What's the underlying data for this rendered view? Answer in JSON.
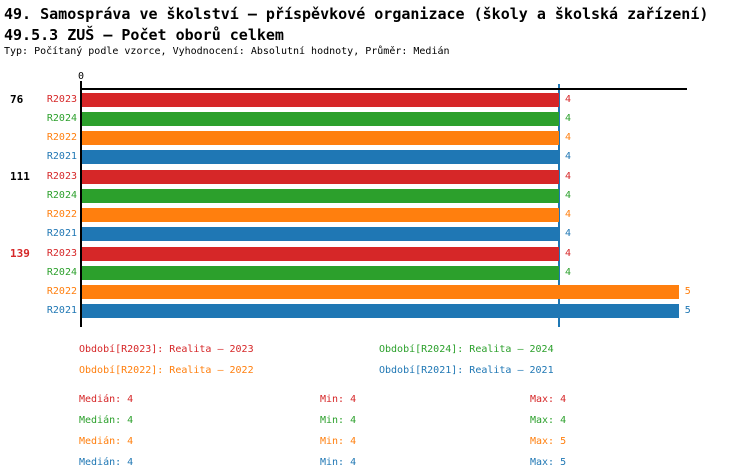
{
  "header": {
    "title": "49. Samospráva ve školství – příspěvkové organizace (školy a školská zařízení)",
    "subtitle": "49.5.3 ZUŠ – Počet oborů celkem",
    "meta": "Typ: Počítaný podle vzorce, Vyhodnocení: Absolutní hodnoty, Průměr: Medián"
  },
  "colors": {
    "R2023": "#d62728",
    "R2024": "#2ca02c",
    "R2022": "#ff7f0e",
    "R2021": "#1f77b4",
    "axis": "#000000",
    "median_line": "#1f77b4",
    "group_label_default": "#000000",
    "group_label_highlight": "#d62728"
  },
  "chart_data": {
    "type": "bar",
    "orientation": "horizontal",
    "title": "49.5.3 ZUŠ – Počet oborů celkem",
    "series_order": [
      "R2023",
      "R2024",
      "R2022",
      "R2021"
    ],
    "series_colors": {
      "R2023": "#d62728",
      "R2024": "#2ca02c",
      "R2022": "#ff7f0e",
      "R2021": "#1f77b4"
    },
    "x_axis": {
      "tick_values": [
        0
      ],
      "tick_labels": [
        "0"
      ],
      "range": [
        0,
        5.06
      ],
      "grid": false
    },
    "median_marker_value": 4,
    "groups": [
      {
        "label": "76",
        "label_color": "#000000",
        "bars": [
          {
            "series": "R2023",
            "value": 4
          },
          {
            "series": "R2024",
            "value": 4
          },
          {
            "series": "R2022",
            "value": 4
          },
          {
            "series": "R2021",
            "value": 4
          }
        ]
      },
      {
        "label": "111",
        "label_color": "#000000",
        "bars": [
          {
            "series": "R2023",
            "value": 4
          },
          {
            "series": "R2024",
            "value": 4
          },
          {
            "series": "R2022",
            "value": 4
          },
          {
            "series": "R2021",
            "value": 4
          }
        ]
      },
      {
        "label": "139",
        "label_color": "#d62728",
        "bars": [
          {
            "series": "R2023",
            "value": 4
          },
          {
            "series": "R2024",
            "value": 4
          },
          {
            "series": "R2022",
            "value": 5
          },
          {
            "series": "R2021",
            "value": 5
          }
        ]
      }
    ]
  },
  "legend": {
    "items": [
      {
        "series": "R2023",
        "label": "Období[R2023]: Realita – 2023",
        "color": "#d62728"
      },
      {
        "series": "R2024",
        "label": "Období[R2024]: Realita – 2024",
        "color": "#2ca02c"
      },
      {
        "series": "R2022",
        "label": "Období[R2022]: Realita – 2022",
        "color": "#ff7f0e"
      },
      {
        "series": "R2021",
        "label": "Období[R2021]: Realita – 2021",
        "color": "#1f77b4"
      }
    ]
  },
  "stats": {
    "rows": [
      {
        "series": "R2023",
        "color": "#d62728",
        "median": "Medián: 4",
        "min": "Min: 4",
        "max": "Max: 4"
      },
      {
        "series": "R2024",
        "color": "#2ca02c",
        "median": "Medián: 4",
        "min": "Min: 4",
        "max": "Max: 4"
      },
      {
        "series": "R2022",
        "color": "#ff7f0e",
        "median": "Medián: 4",
        "min": "Min: 4",
        "max": "Max: 5"
      },
      {
        "series": "R2021",
        "color": "#1f77b4",
        "median": "Medián: 4",
        "min": "Min: 4",
        "max": "Max: 5"
      }
    ]
  }
}
